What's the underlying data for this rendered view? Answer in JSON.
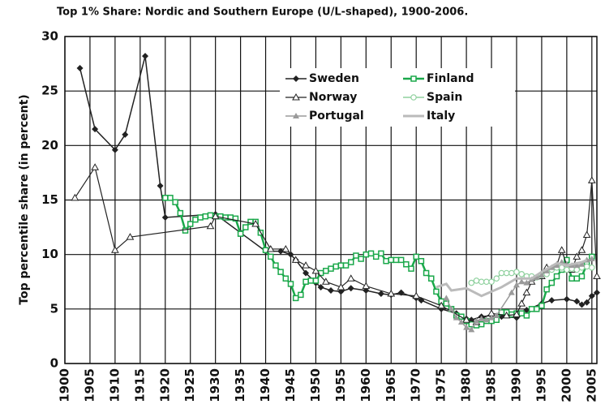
{
  "chart_data": {
    "type": "line",
    "title": "Top 1% Share: Nordic and Southern Europe (U/L-shaped), 1900-2006.",
    "y_label": "Top percentile share (in percent)",
    "xlim": [
      1900,
      2006
    ],
    "ylim": [
      0,
      30
    ],
    "xticks": [
      1900,
      1905,
      1910,
      1915,
      1920,
      1925,
      1930,
      1935,
      1940,
      1945,
      1950,
      1955,
      1960,
      1965,
      1970,
      1975,
      1980,
      1985,
      1990,
      1995,
      2000,
      2005
    ],
    "yticks": [
      0,
      5,
      10,
      15,
      20,
      25,
      30
    ],
    "grid": true,
    "legend": "top-right",
    "series": [
      {
        "name": "Sweden",
        "color": "#222222",
        "marker": "diamond",
        "x": [
          1903,
          1906,
          1910,
          1912,
          1916,
          1919,
          1920,
          1930,
          1935,
          1940,
          1943,
          1945,
          1946,
          1948,
          1950,
          1951,
          1953,
          1955,
          1957,
          1960,
          1963,
          1965,
          1967,
          1970,
          1971,
          1975,
          1978,
          1980,
          1981,
          1983,
          1985,
          1987,
          1990,
          1992,
          1995,
          1997,
          2000,
          2002,
          2003,
          2004,
          2005,
          2006
        ],
        "values": [
          27.1,
          21.5,
          19.6,
          21.0,
          28.2,
          16.3,
          13.4,
          13.7,
          12.0,
          10.3,
          10.3,
          10.0,
          9.5,
          8.3,
          7.4,
          7.0,
          6.7,
          6.6,
          6.9,
          6.7,
          6.4,
          6.3,
          6.5,
          6.0,
          5.8,
          5.0,
          4.6,
          4.1,
          4.0,
          4.3,
          4.4,
          4.3,
          4.2,
          4.9,
          5.5,
          5.8,
          5.9,
          5.7,
          5.4,
          5.6,
          6.2,
          6.5
        ]
      },
      {
        "name": "Finland",
        "color": "#1aa84a",
        "marker": "square",
        "x": [
          1920,
          1921,
          1922,
          1923,
          1924,
          1925,
          1926,
          1927,
          1928,
          1929,
          1930,
          1931,
          1932,
          1933,
          1934,
          1935,
          1936,
          1937,
          1938,
          1939,
          1940,
          1941,
          1942,
          1943,
          1944,
          1945,
          1946,
          1947,
          1948,
          1949,
          1950,
          1951,
          1952,
          1953,
          1954,
          1955,
          1956,
          1957,
          1958,
          1959,
          1960,
          1961,
          1962,
          1963,
          1964,
          1965,
          1966,
          1967,
          1968,
          1969,
          1970,
          1971,
          1972,
          1973,
          1974,
          1975,
          1976,
          1977,
          1978,
          1979,
          1980,
          1981,
          1982,
          1983,
          1984,
          1985,
          1986,
          1987,
          1988,
          1989,
          1990,
          1991,
          1992,
          1993,
          1994,
          1995,
          1996,
          1997,
          1998,
          1999,
          2000,
          2001,
          2002,
          2003,
          2004,
          2005
        ],
        "values": [
          15.2,
          15.2,
          14.8,
          13.8,
          12.2,
          12.8,
          13.2,
          13.4,
          13.5,
          13.6,
          13.5,
          13.5,
          13.4,
          13.4,
          13.3,
          11.9,
          12.5,
          13.0,
          13.0,
          12.0,
          10.4,
          9.8,
          9.0,
          8.4,
          7.8,
          7.3,
          6.0,
          6.3,
          7.5,
          7.6,
          7.6,
          8.3,
          8.5,
          8.7,
          8.9,
          9.0,
          9.0,
          9.3,
          9.9,
          9.6,
          10.0,
          10.1,
          9.8,
          10.1,
          9.4,
          9.5,
          9.5,
          9.5,
          9.1,
          8.7,
          9.8,
          9.4,
          8.3,
          7.8,
          6.6,
          5.7,
          5.5,
          5.0,
          4.4,
          4.3,
          3.9,
          3.6,
          3.5,
          3.6,
          3.9,
          3.9,
          4.0,
          4.7,
          4.7,
          4.5,
          4.6,
          4.6,
          4.4,
          5.0,
          5.0,
          5.3,
          6.8,
          7.4,
          8.0,
          8.6,
          9.5,
          7.8,
          7.8,
          8.0,
          9.1,
          9.8
        ]
      },
      {
        "name": "Norway",
        "color": "#222222",
        "marker": "triangle-open",
        "x": [
          1902,
          1906,
          1910,
          1913,
          1929,
          1930,
          1938,
          1941,
          1944,
          1946,
          1948,
          1950,
          1952,
          1955,
          1957,
          1960,
          1965,
          1970,
          1975,
          1980,
          1982,
          1985,
          1988,
          1990,
          1991,
          1992,
          1993,
          1995,
          1996,
          1998,
          1999,
          2000,
          2001,
          2002,
          2003,
          2004,
          2005,
          2006
        ],
        "values": [
          15.2,
          18.0,
          10.4,
          11.6,
          12.6,
          13.5,
          12.8,
          10.5,
          10.5,
          9.5,
          9.0,
          8.5,
          7.5,
          7.0,
          7.8,
          7.1,
          6.4,
          6.2,
          5.3,
          4.0,
          3.8,
          4.6,
          4.4,
          4.5,
          5.5,
          6.5,
          7.5,
          8.0,
          8.8,
          9.0,
          10.4,
          9.0,
          8.6,
          9.8,
          10.4,
          11.8,
          16.8,
          8.0
        ]
      },
      {
        "name": "Spain",
        "color": "#8fd19e",
        "marker": "circle-open",
        "x": [
          1981,
          1982,
          1983,
          1984,
          1985,
          1986,
          1987,
          1988,
          1989,
          1990,
          1991,
          1992,
          1993,
          1994,
          1995,
          1996,
          1997,
          1998,
          1999,
          2000,
          2001,
          2002,
          2003,
          2004,
          2005
        ],
        "values": [
          7.4,
          7.6,
          7.5,
          7.5,
          7.5,
          7.8,
          8.3,
          8.3,
          8.3,
          8.4,
          8.2,
          8.0,
          8.0,
          7.9,
          8.1,
          8.2,
          8.6,
          8.8,
          8.8,
          8.6,
          8.7,
          8.6,
          8.8,
          8.9,
          8.8
        ]
      },
      {
        "name": "Portugal",
        "color": "#9a9a9a",
        "marker": "triangle",
        "x": [
          1976,
          1977,
          1978,
          1979,
          1980,
          1981,
          1982,
          1983,
          1984,
          1985,
          1986,
          1989,
          1990,
          1991,
          1992,
          1993,
          1994,
          1995,
          1996,
          1997,
          1998,
          1999,
          2000,
          2001,
          2002,
          2003,
          2004,
          2005
        ],
        "values": [
          6.0,
          5.0,
          4.2,
          3.8,
          3.3,
          3.1,
          3.9,
          4.1,
          4.0,
          4.2,
          4.4,
          6.5,
          7.2,
          7.5,
          7.4,
          7.7,
          7.9,
          8.1,
          8.5,
          8.8,
          9.0,
          9.3,
          9.1,
          9.0,
          9.0,
          9.1,
          9.5,
          9.6
        ]
      },
      {
        "name": "Italy",
        "color": "#bbbbbb",
        "marker": "none",
        "x": [
          1974,
          1976,
          1977,
          1980,
          1983,
          1985,
          1987,
          1990,
          1993,
          1995,
          1998,
          2000,
          2003,
          2004
        ],
        "values": [
          7.0,
          7.3,
          6.7,
          6.9,
          6.2,
          6.6,
          7.0,
          7.8,
          7.8,
          8.4,
          9.2,
          9.0,
          9.3,
          9.5
        ]
      }
    ]
  }
}
